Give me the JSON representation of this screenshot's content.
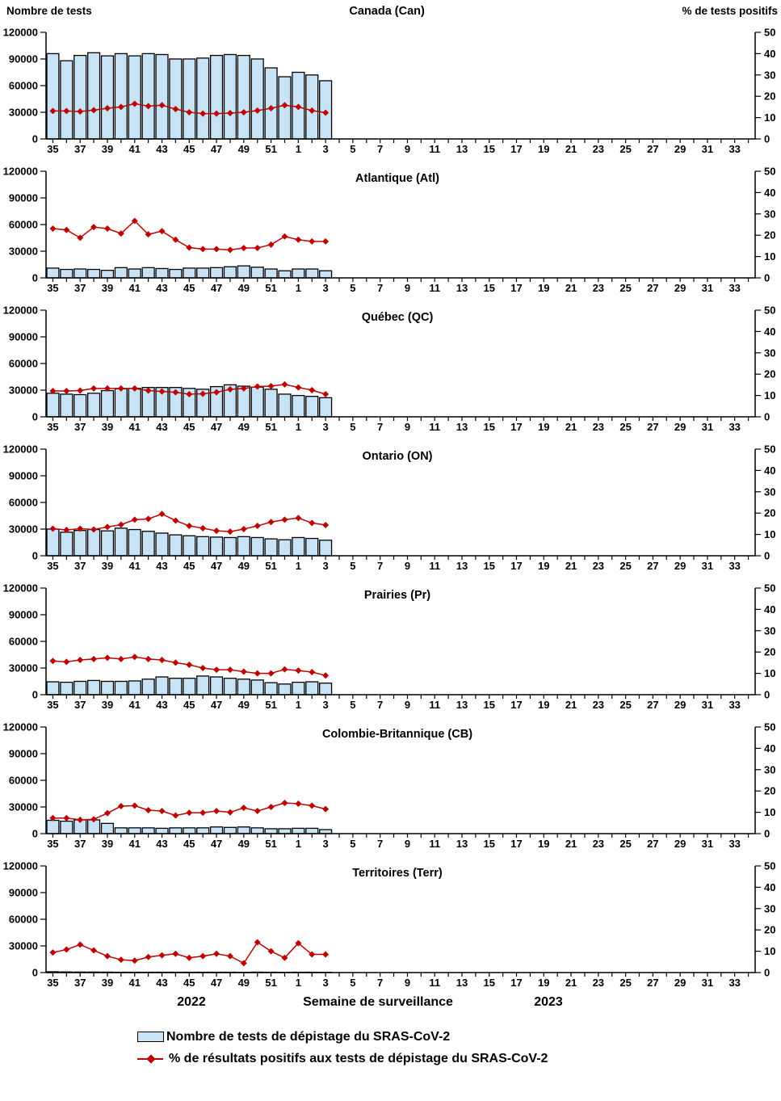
{
  "page": {
    "left_axis_title": "Nombre de tests",
    "right_axis_title": "% de tests positifs",
    "x_axis_title": "Semaine de surveillance",
    "year_left": "2022",
    "year_right": "2023",
    "legend": [
      {
        "type": "bar",
        "label": "Nombre de tests de dépistage du SRAS-CoV-2"
      },
      {
        "type": "line",
        "label": "% de résultats positifs aux tests de dépistage du SRAS-CoV-2"
      }
    ]
  },
  "chart_data": {
    "type": "combo-bar-line-multipanel",
    "weeks": [
      35,
      36,
      37,
      38,
      39,
      40,
      41,
      42,
      43,
      44,
      45,
      46,
      47,
      48,
      49,
      50,
      51,
      52,
      1,
      2,
      3,
      4,
      5,
      6,
      7,
      8,
      9,
      10,
      11,
      12,
      13,
      14,
      15,
      16,
      17,
      18,
      19,
      20,
      21,
      22,
      23,
      24,
      25,
      26,
      27,
      28,
      29,
      30,
      31,
      32,
      33,
      34
    ],
    "x_tick_labels": [
      35,
      37,
      39,
      41,
      43,
      45,
      47,
      49,
      51,
      1,
      3,
      5,
      7,
      9,
      11,
      13,
      15,
      17,
      19,
      21,
      23,
      25,
      27,
      29,
      31,
      33
    ],
    "weeks_with_data": 21,
    "left_axis": {
      "label": "Nombre de tests",
      "ticks": [
        0,
        30000,
        60000,
        90000,
        120000
      ],
      "max": 120000
    },
    "right_axis": {
      "label": "% de tests positifs",
      "ticks": [
        0,
        10,
        20,
        30,
        40,
        50
      ],
      "max": 50
    },
    "colors": {
      "bar_fill": "#C9E3F6",
      "bar_border": "#000000",
      "line": "#C00000"
    },
    "panels": [
      {
        "id": "canada",
        "title": "Canada (Can)",
        "tests": [
          96000,
          88000,
          94000,
          97000,
          93500,
          96000,
          93500,
          96000,
          95000,
          90000,
          90000,
          91000,
          94000,
          95000,
          94000,
          90000,
          80000,
          70000,
          75000,
          72000,
          65500
        ],
        "percent_positive": [
          13.1,
          13.1,
          12.9,
          13.5,
          14.4,
          15.0,
          16.5,
          15.4,
          15.8,
          14.0,
          12.5,
          11.9,
          11.9,
          12.1,
          12.5,
          13.3,
          14.4,
          15.8,
          15.0,
          13.3,
          12.3
        ]
      },
      {
        "id": "atlantique",
        "title": "Atlantique (Atl)",
        "tests": [
          11000,
          9500,
          10000,
          9500,
          8500,
          11500,
          10000,
          11500,
          10500,
          9500,
          11000,
          11000,
          11500,
          12500,
          13500,
          12000,
          10000,
          8000,
          10000,
          10000,
          8000
        ],
        "percent_positive": [
          23.1,
          22.5,
          18.8,
          23.8,
          23.1,
          20.8,
          26.7,
          20.4,
          21.9,
          17.9,
          14.2,
          13.5,
          13.5,
          13.1,
          14.0,
          14.0,
          15.6,
          19.4,
          17.9,
          17.1,
          17.1
        ]
      },
      {
        "id": "quebec",
        "title": "Québec (QC)",
        "tests": [
          26500,
          25500,
          25000,
          26500,
          29500,
          31500,
          32000,
          33000,
          33000,
          33000,
          32000,
          31000,
          34000,
          36000,
          34500,
          33500,
          31000,
          25500,
          24000,
          23000,
          21500
        ],
        "percent_positive": [
          12.1,
          12.1,
          12.3,
          13.3,
          13.3,
          13.3,
          13.3,
          12.3,
          11.9,
          11.5,
          10.6,
          10.8,
          11.5,
          12.9,
          13.3,
          14.2,
          14.4,
          15.2,
          13.8,
          12.5,
          10.6
        ]
      },
      {
        "id": "ontario",
        "title": "Ontario (ON)",
        "tests": [
          30000,
          26500,
          28500,
          29500,
          28000,
          31000,
          29500,
          27500,
          25500,
          23500,
          22500,
          21500,
          21000,
          20500,
          21500,
          20500,
          19000,
          18000,
          20500,
          19500,
          17500
        ],
        "percent_positive": [
          12.7,
          12.1,
          12.7,
          12.3,
          13.5,
          14.6,
          16.9,
          17.3,
          19.6,
          16.5,
          14.0,
          12.9,
          11.7,
          11.3,
          12.5,
          14.0,
          15.8,
          16.9,
          17.7,
          15.4,
          14.4
        ]
      },
      {
        "id": "prairies",
        "title": "Prairies (Pr)",
        "tests": [
          14500,
          14000,
          15000,
          16000,
          15000,
          15000,
          15500,
          17500,
          20000,
          18500,
          18500,
          21000,
          20000,
          18500,
          17500,
          16500,
          13500,
          12000,
          14000,
          14500,
          13000
        ],
        "percent_positive": [
          15.8,
          15.4,
          16.3,
          16.7,
          17.3,
          16.7,
          17.7,
          16.7,
          16.3,
          15.0,
          14.0,
          12.5,
          11.7,
          11.7,
          10.8,
          10.0,
          10.0,
          11.9,
          11.3,
          10.6,
          9.0
        ]
      },
      {
        "id": "colombie-britannique",
        "title": "Colombie-Britannique (CB)",
        "tests": [
          15000,
          14000,
          15500,
          15500,
          11500,
          6500,
          6500,
          6500,
          6000,
          6500,
          6500,
          6500,
          7500,
          7000,
          7500,
          6500,
          5500,
          5500,
          6000,
          6000,
          4500
        ],
        "percent_positive": [
          7.3,
          7.3,
          6.5,
          6.7,
          9.6,
          12.9,
          13.1,
          11.0,
          10.6,
          8.5,
          9.8,
          9.8,
          10.6,
          10.0,
          12.1,
          10.6,
          12.5,
          14.4,
          14.0,
          13.1,
          11.5
        ]
      },
      {
        "id": "territoires",
        "title": "Territoires (Terr)",
        "tests": [
          900,
          700,
          600,
          600,
          500,
          400,
          400,
          400,
          400,
          400,
          400,
          400,
          400,
          400,
          300,
          500,
          400,
          300,
          400,
          400,
          300
        ],
        "percent_positive": [
          9.4,
          10.8,
          13.1,
          10.4,
          7.7,
          6.0,
          5.6,
          7.3,
          8.1,
          8.8,
          6.9,
          7.7,
          8.8,
          7.7,
          4.4,
          14.2,
          10.0,
          6.9,
          13.8,
          8.5,
          8.5
        ]
      }
    ]
  }
}
